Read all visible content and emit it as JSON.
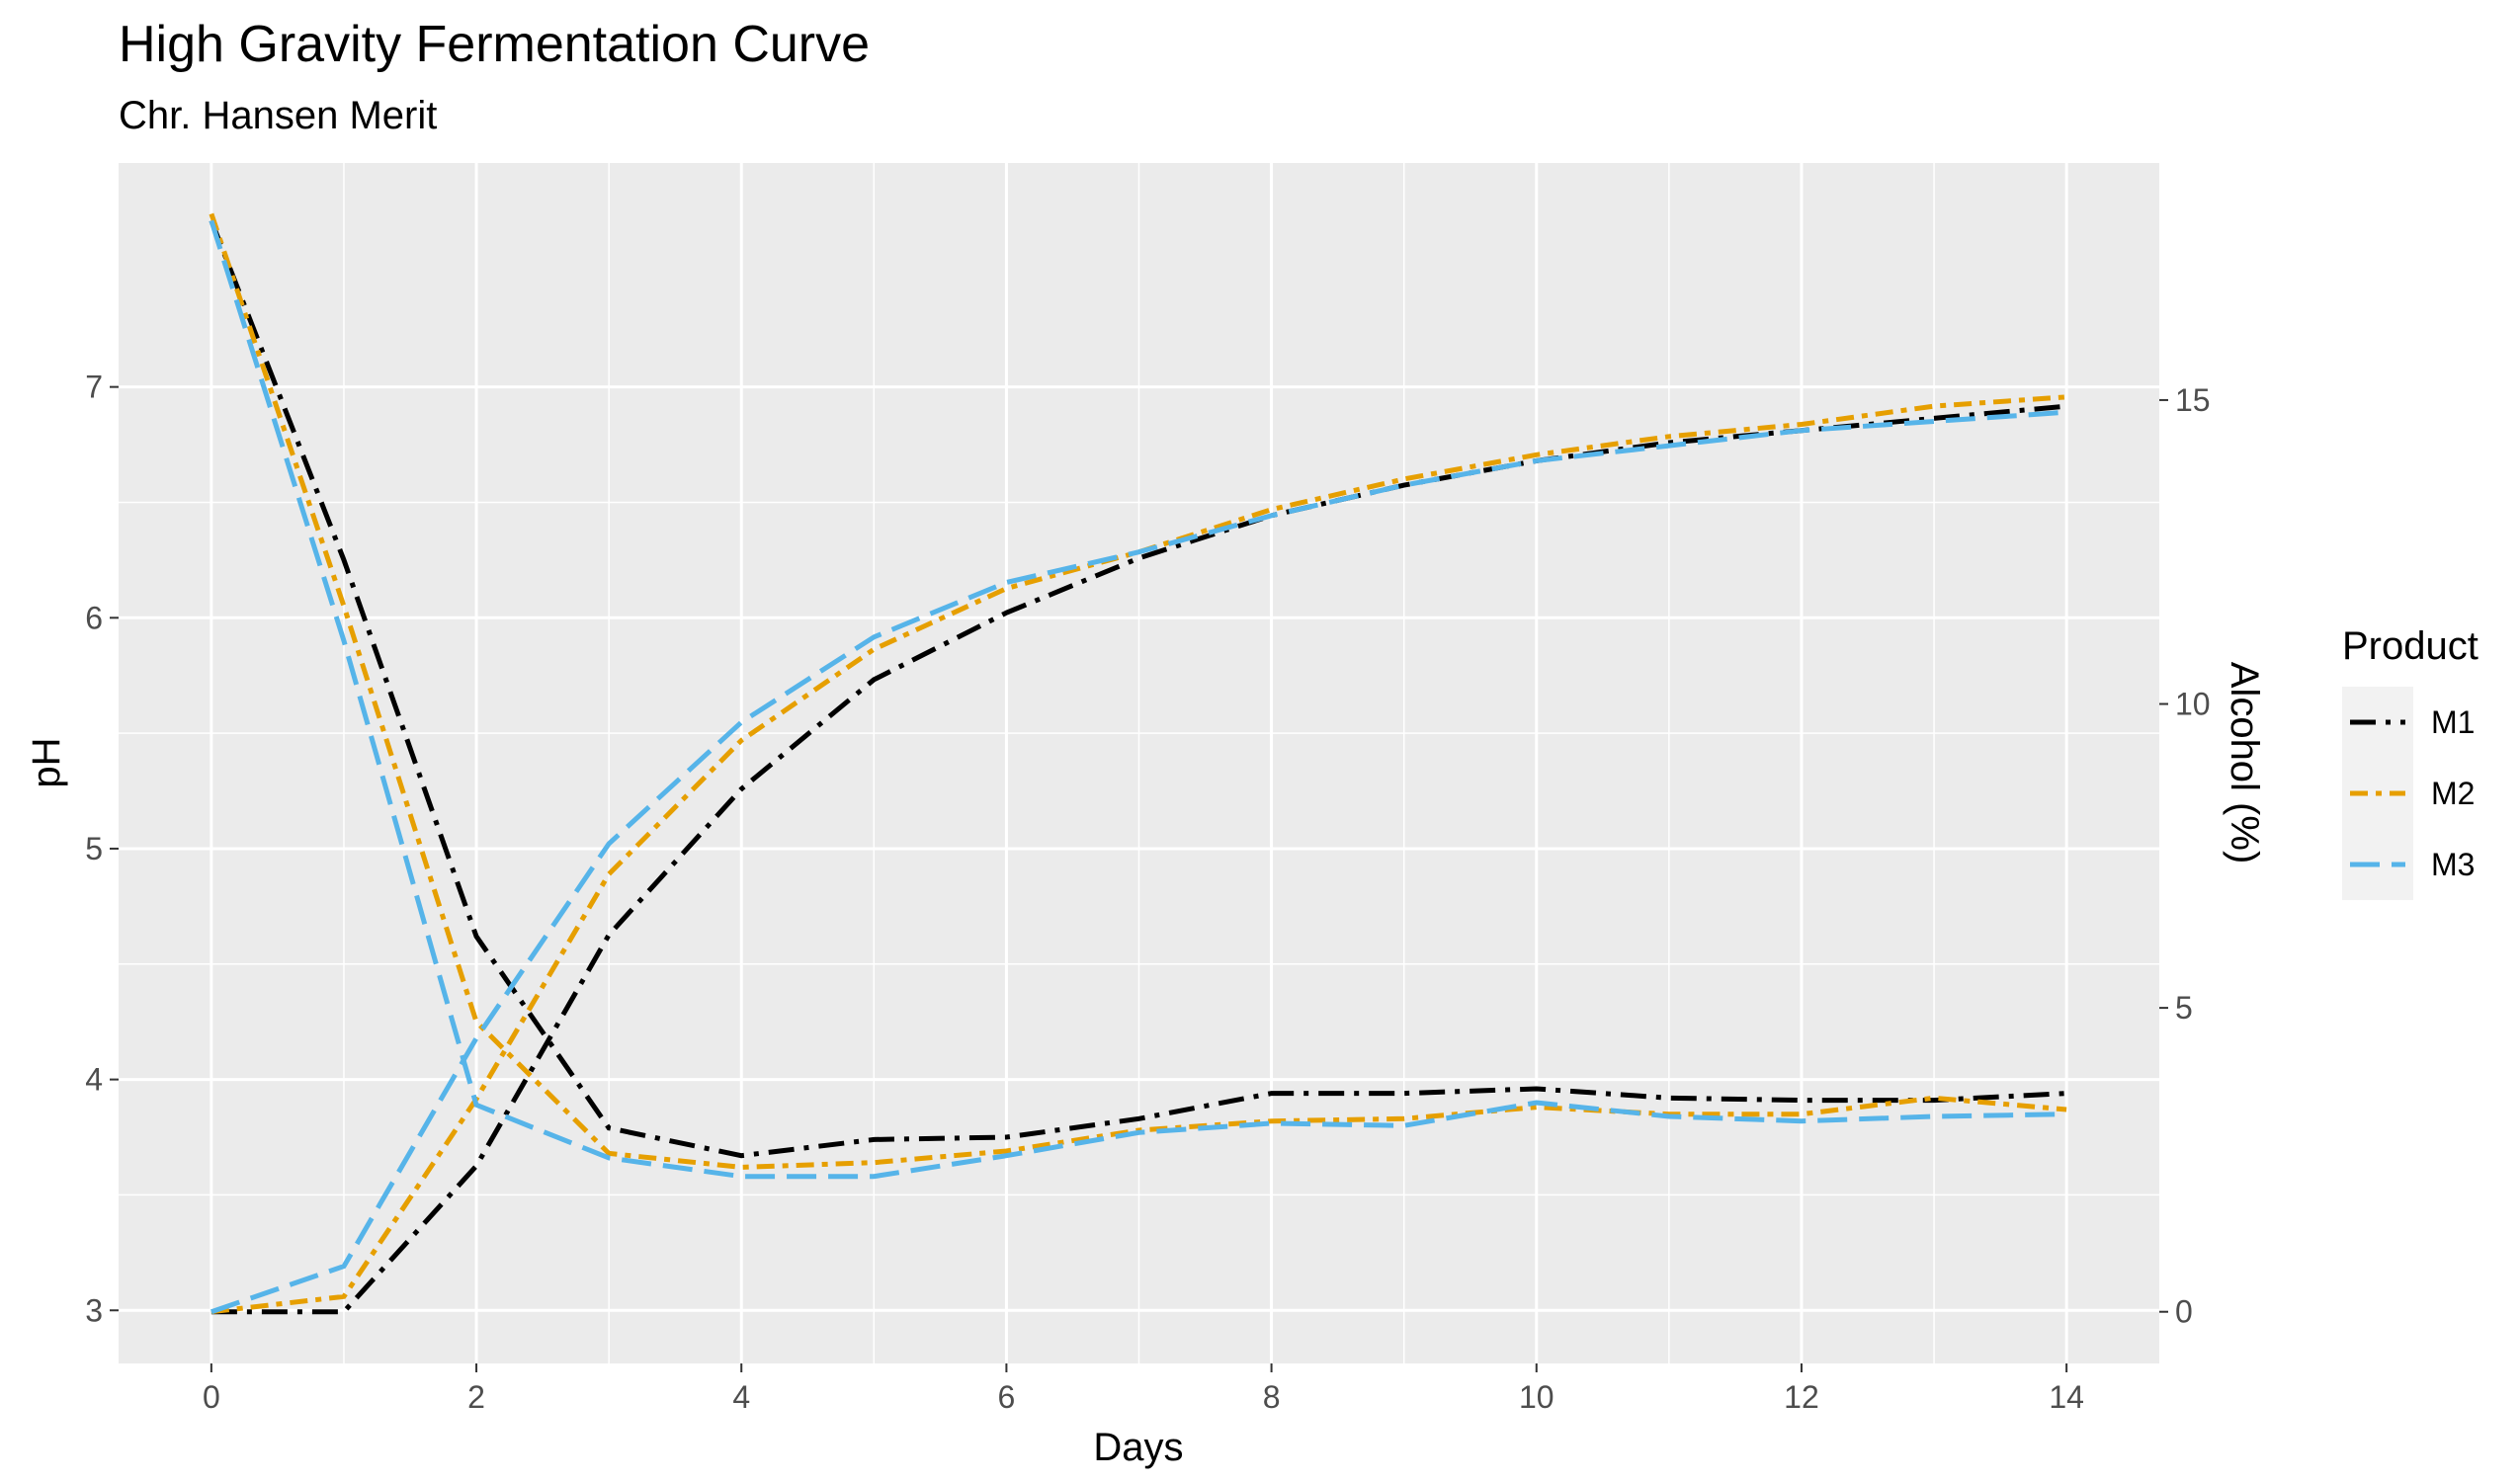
{
  "chart_data": {
    "type": "line",
    "title": "High Gravity Fermentation Curve",
    "subtitle": "Chr. Hansen Merit",
    "xlabel": "Days",
    "ylabel_left": "pH",
    "ylabel_right": "Alcohol (%)",
    "xlim": [
      -0.7,
      14.7
    ],
    "ylim_left": [
      2.77,
      7.97
    ],
    "ylim_right": [
      -0.85,
      18.9
    ],
    "x_ticks": [
      0,
      2,
      4,
      6,
      8,
      10,
      12,
      14
    ],
    "y_ticks_left": [
      3,
      4,
      5,
      6,
      7
    ],
    "y_ticks_right": [
      0,
      5,
      10,
      15
    ],
    "grid": true,
    "legend_title": "Product",
    "legend_position": "right",
    "x": [
      0,
      1,
      2,
      3,
      4,
      5,
      6,
      7,
      8,
      9,
      10,
      11,
      12,
      13,
      14
    ],
    "series": [
      {
        "name": "M1",
        "color": "#000000",
        "dash": "long-dash-dot",
        "ph": [
          7.72,
          6.25,
          4.62,
          3.79,
          3.67,
          3.74,
          3.75,
          3.83,
          3.94,
          3.94,
          3.96,
          3.92,
          3.91,
          3.91,
          3.94
        ],
        "alcohol": [
          0.0,
          0.0,
          2.4,
          6.2,
          8.6,
          10.4,
          11.5,
          12.4,
          13.1,
          13.6,
          14.0,
          14.3,
          14.5,
          14.7,
          14.9
        ]
      },
      {
        "name": "M2",
        "color": "#E69F00",
        "dash": "dash-dot",
        "ph": [
          7.75,
          6.05,
          4.25,
          3.68,
          3.62,
          3.64,
          3.69,
          3.78,
          3.82,
          3.83,
          3.88,
          3.85,
          3.85,
          3.92,
          3.87
        ],
        "alcohol": [
          0.0,
          0.25,
          3.5,
          7.2,
          9.4,
          10.9,
          11.9,
          12.5,
          13.2,
          13.7,
          14.1,
          14.4,
          14.6,
          14.9,
          15.05
        ]
      },
      {
        "name": "M3",
        "color": "#56B4E9",
        "dash": "long-dash",
        "ph": [
          7.72,
          5.9,
          3.89,
          3.66,
          3.58,
          3.58,
          3.67,
          3.77,
          3.81,
          3.8,
          3.9,
          3.84,
          3.82,
          3.84,
          3.85
        ],
        "alcohol": [
          0.0,
          0.75,
          4.5,
          7.7,
          9.7,
          11.1,
          12.0,
          12.5,
          13.1,
          13.6,
          14.0,
          14.25,
          14.5,
          14.65,
          14.8
        ]
      }
    ]
  }
}
